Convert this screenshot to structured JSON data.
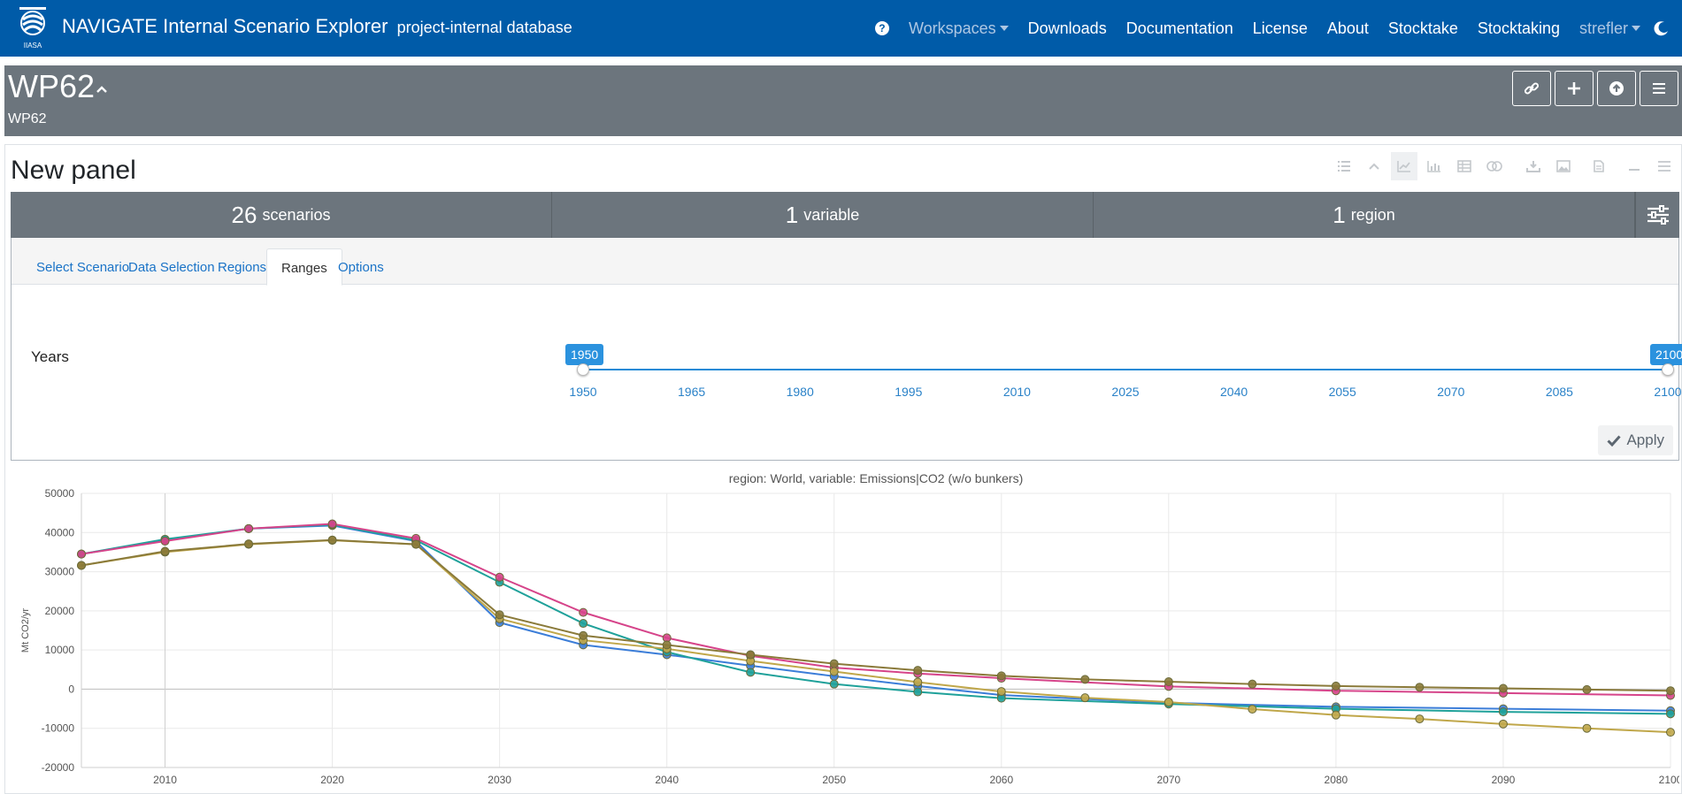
{
  "navbar": {
    "logo_text": "IIASA",
    "title": "NAVIGATE Internal Scenario Explorer",
    "subtitle": "project-internal database",
    "help_icon": "question-circle-icon",
    "items": [
      {
        "label": "Workspaces",
        "dropdown": true,
        "muted": true
      },
      {
        "label": "Downloads"
      },
      {
        "label": "Documentation"
      },
      {
        "label": "License"
      },
      {
        "label": "About"
      },
      {
        "label": "Stocktake"
      },
      {
        "label": "Stocktaking"
      },
      {
        "label": "strefler",
        "dropdown": true,
        "muted": true
      }
    ],
    "theme_icon": "moon-icon",
    "color": "#005ba8"
  },
  "workspace": {
    "title": "WP62",
    "subtitle": "WP62",
    "buttons": [
      "link-icon",
      "plus-icon",
      "upload-icon",
      "menu-icon"
    ]
  },
  "panel": {
    "title": "New panel",
    "tools": [
      "list-icon",
      "chevron-up-icon",
      "line-chart-icon",
      "bar-chart-icon",
      "table-icon",
      "venn-icon",
      "download-icon",
      "image-icon",
      "file-icon",
      "minimize-icon",
      "menu-icon"
    ],
    "summary": {
      "scenarios": {
        "count": "26",
        "label": "scenarios"
      },
      "variables": {
        "count": "1",
        "label": "variable"
      },
      "regions": {
        "count": "1",
        "label": "region"
      }
    },
    "tabs": [
      "Select Scenario",
      "Data Selection",
      "Regions",
      "Ranges",
      "Options"
    ],
    "active_tab": "Ranges",
    "ranges": {
      "label": "Years",
      "min_value": "1950",
      "max_value": "2100",
      "ticks": [
        "1950",
        "1965",
        "1980",
        "1995",
        "2010",
        "2025",
        "2040",
        "2055",
        "2070",
        "2085",
        "2100"
      ]
    },
    "apply_label": "Apply"
  },
  "chart_data": {
    "type": "line",
    "title": "region: World, variable: Emissions|CO2 (w/o bunkers)",
    "xlabel": "",
    "ylabel": "Mt CO2/yr",
    "xlim": [
      2005,
      2100
    ],
    "ylim": [
      -20000,
      50000
    ],
    "x_ticks": [
      2010,
      2020,
      2030,
      2040,
      2050,
      2060,
      2070,
      2080,
      2090,
      2100
    ],
    "y_ticks": [
      -20000,
      -10000,
      0,
      10000,
      20000,
      30000,
      40000,
      50000
    ],
    "grid": true,
    "legend": "none",
    "series": [
      {
        "color": "#3b7dd8",
        "x": [
          2005,
          2010,
          2015,
          2020,
          2025,
          2030,
          2035,
          2040,
          2045,
          2050,
          2055,
          2060,
          2070,
          2080,
          2090,
          2100
        ],
        "values": [
          34500,
          38000,
          41000,
          41800,
          37800,
          17000,
          11300,
          8800,
          6000,
          3300,
          800,
          -1500,
          -3500,
          -4500,
          -5000,
          -5500
        ]
      },
      {
        "color": "#1fa19a",
        "x": [
          2005,
          2010,
          2015,
          2020,
          2025,
          2030,
          2035,
          2040,
          2045,
          2050,
          2055,
          2060,
          2070,
          2080,
          2090,
          2100
        ],
        "values": [
          34500,
          38300,
          41000,
          42000,
          38000,
          27300,
          16800,
          9500,
          4300,
          1300,
          -700,
          -2300,
          -3800,
          -5000,
          -5800,
          -6300
        ]
      },
      {
        "color": "#d6448a",
        "x": [
          2005,
          2010,
          2015,
          2020,
          2025,
          2030,
          2035,
          2040,
          2045,
          2050,
          2055,
          2060,
          2070,
          2080,
          2090,
          2100
        ],
        "values": [
          34500,
          37800,
          41000,
          42200,
          38500,
          28600,
          19600,
          13100,
          8500,
          5500,
          4000,
          2800,
          700,
          -400,
          -1000,
          -1600
        ]
      },
      {
        "color": "#c0a74a",
        "x": [
          2005,
          2010,
          2015,
          2020,
          2025,
          2030,
          2035,
          2040,
          2045,
          2050,
          2055,
          2060,
          2065,
          2070,
          2075,
          2080,
          2085,
          2090,
          2095,
          2100
        ],
        "values": [
          31600,
          35000,
          37000,
          38000,
          37000,
          18000,
          12500,
          10300,
          7200,
          4500,
          1800,
          -600,
          -2200,
          -3300,
          -5100,
          -6600,
          -7600,
          -8900,
          -10000,
          -11000
        ]
      },
      {
        "color": "#8a7a3a",
        "x": [
          2005,
          2010,
          2015,
          2020,
          2025,
          2030,
          2035,
          2040,
          2045,
          2050,
          2055,
          2060,
          2065,
          2070,
          2075,
          2080,
          2085,
          2090,
          2095,
          2100
        ],
        "values": [
          31600,
          35200,
          37100,
          38100,
          37000,
          19000,
          13700,
          11300,
          8800,
          6500,
          4800,
          3400,
          2500,
          1900,
          1300,
          800,
          500,
          200,
          -100,
          -400
        ]
      }
    ]
  }
}
